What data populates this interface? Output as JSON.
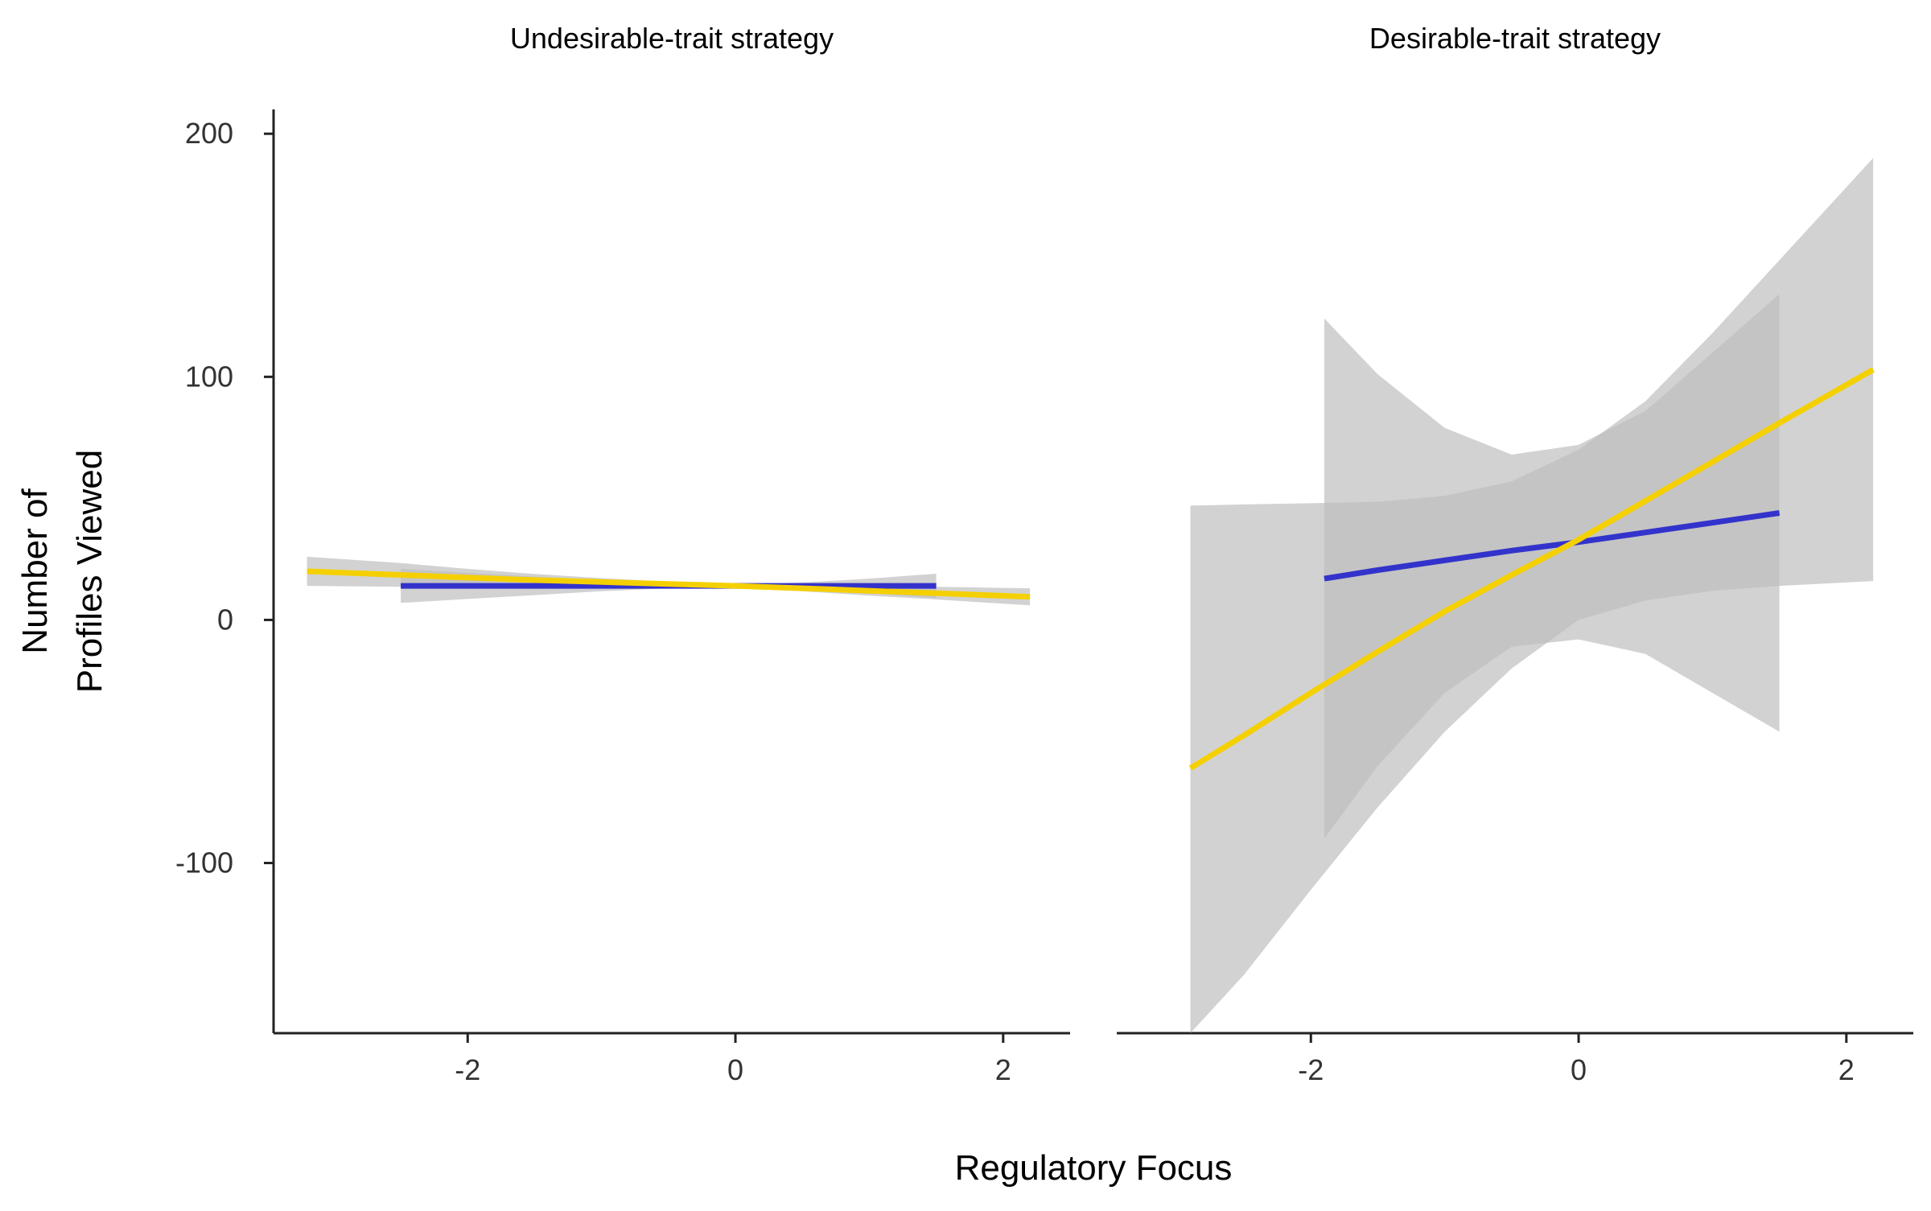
{
  "chart_data": {
    "type": "line",
    "xlabel": "Regulatory Focus",
    "ylabel_lines": [
      "Number of",
      "Profiles Viewed"
    ],
    "ylim": [
      -170,
      210
    ],
    "yticks": [
      -100,
      0,
      100,
      200
    ],
    "xticks": [
      -2,
      0,
      2
    ],
    "colors": {
      "blue": "#3333cc",
      "yellow": "#f5d000",
      "ribbon": "#bdbdbd"
    },
    "panels": [
      {
        "title": "Undesirable-trait strategy",
        "xlim": [
          -3.45,
          2.5
        ],
        "series": [
          {
            "color": "blue",
            "x": [
              -2.5,
              -2.0,
              -1.5,
              -1.0,
              -0.5,
              0.0,
              0.5,
              1.0,
              1.5
            ],
            "y": [
              14.0,
              14.0,
              14.0,
              14.0,
              14.0,
              14.0,
              14.0,
              14.0,
              14.0
            ],
            "lower": [
              7.0,
              8.6,
              10.2,
              11.8,
              13.0,
              13.4,
              12.6,
              11.0,
              9.0
            ],
            "upper": [
              21.0,
              19.4,
              17.8,
              16.2,
              15.0,
              14.6,
              15.4,
              17.0,
              19.0
            ]
          },
          {
            "color": "yellow",
            "x": [
              -3.2,
              -2.5,
              -2.0,
              -1.5,
              -1.0,
              -0.5,
              0.0,
              0.5,
              1.0,
              1.5,
              2.2
            ],
            "y": [
              20.0,
              18.5,
              17.4,
              16.4,
              15.6,
              14.8,
              14.0,
              13.0,
              12.0,
              11.0,
              9.5
            ],
            "lower": [
              14.0,
              13.6,
              13.8,
              13.9,
              14.0,
              13.9,
              13.3,
              11.8,
              10.0,
              8.4,
              6.0
            ],
            "upper": [
              26.0,
              23.4,
              21.0,
              18.9,
              17.2,
              15.7,
              14.7,
              14.2,
              14.0,
              13.6,
              13.0
            ]
          }
        ]
      },
      {
        "title": "Desirable-trait strategy",
        "xlim": [
          -3.45,
          2.5
        ],
        "series": [
          {
            "color": "blue",
            "x": [
              -1.9,
              -1.5,
              -1.0,
              -0.5,
              0.0,
              0.5,
              1.0,
              1.5
            ],
            "y": [
              17.0,
              20.5,
              24.5,
              28.5,
              32.0,
              36.0,
              40.0,
              44.0
            ],
            "lower": [
              -90.0,
              -60.0,
              -30.0,
              -11.0,
              -8.0,
              -14.0,
              -30.0,
              -46.0
            ],
            "upper": [
              124.0,
              101.0,
              79.0,
              68.0,
              72.0,
              86.0,
              110.0,
              134.0
            ]
          },
          {
            "color": "yellow",
            "x": [
              -2.9,
              -2.5,
              -2.0,
              -1.5,
              -1.0,
              -0.5,
              0.0,
              0.5,
              1.0,
              1.5,
              2.2
            ],
            "y": [
              -61.0,
              -47.5,
              -30.0,
              -13.0,
              3.5,
              18.5,
              33.0,
              49.0,
              65.0,
              81.0,
              103.0
            ],
            "lower": [
              -170.0,
              -146.0,
              -111.0,
              -77.0,
              -46.0,
              -20.0,
              0.0,
              8.0,
              12.0,
              14.0,
              16.0
            ],
            "upper": [
              47.0,
              47.5,
              48.0,
              48.6,
              51.0,
              57.0,
              70.0,
              90.0,
              118.0,
              148.0,
              190.0
            ]
          }
        ]
      }
    ]
  }
}
